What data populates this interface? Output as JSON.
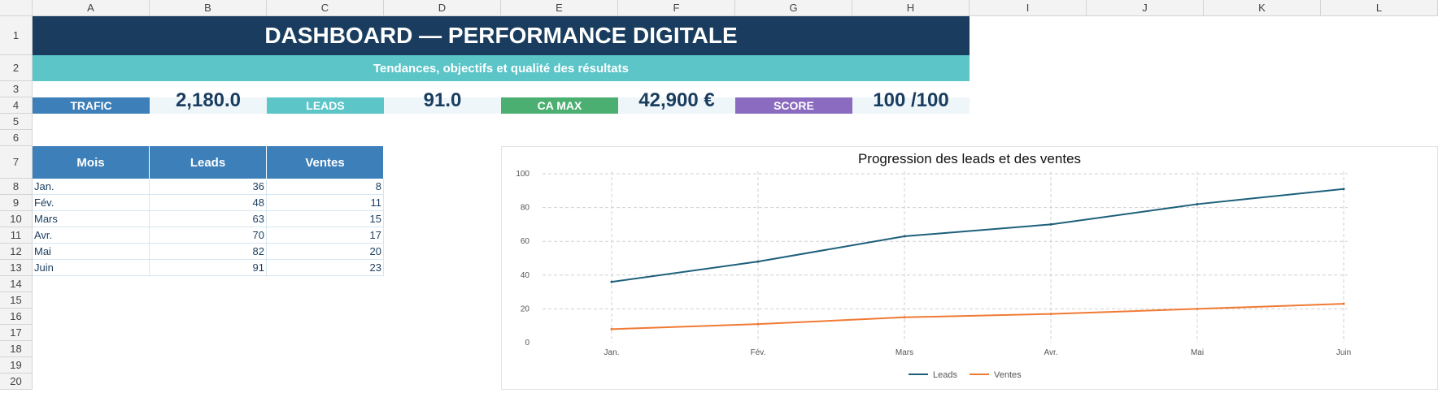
{
  "columns": [
    "A",
    "B",
    "C",
    "D",
    "E",
    "F",
    "G",
    "H",
    "I",
    "J",
    "K",
    "L"
  ],
  "rows": [
    "1",
    "2",
    "3",
    "4",
    "5",
    "6",
    "7",
    "8",
    "9",
    "10",
    "11",
    "12",
    "13",
    "14",
    "15",
    "16",
    "17",
    "18",
    "19",
    "20"
  ],
  "header": {
    "title": "DASHBOARD — PERFORMANCE DIGITALE",
    "subtitle": "Tendances, objectifs et qualité des résultats"
  },
  "kpis": [
    {
      "label": "TRAFIC",
      "value": "2,180.0",
      "color": "#3d7fb8"
    },
    {
      "label": "LEADS",
      "value": "91.0",
      "color": "#5bc5c8"
    },
    {
      "label": "CA MAX",
      "value": "42,900 €",
      "color": "#4caf72"
    },
    {
      "label": "SCORE",
      "value": "100 /100",
      "color": "#8a6bbf"
    }
  ],
  "table": {
    "headers": [
      "Mois",
      "Leads",
      "Ventes"
    ],
    "rows": [
      [
        "Jan.",
        "36",
        "8"
      ],
      [
        "Fév.",
        "48",
        "11"
      ],
      [
        "Mars",
        "63",
        "15"
      ],
      [
        "Avr.",
        "70",
        "17"
      ],
      [
        "Mai",
        "82",
        "20"
      ],
      [
        "Juin",
        "91",
        "23"
      ]
    ]
  },
  "chart_data": {
    "type": "line",
    "title": "Progression des leads et des ventes",
    "categories": [
      "Jan.",
      "Fév.",
      "Mars",
      "Avr.",
      "Mai",
      "Juin"
    ],
    "series": [
      {
        "name": "Leads",
        "values": [
          36,
          48,
          63,
          70,
          82,
          91
        ],
        "color": "#1d5f7a"
      },
      {
        "name": "Ventes",
        "values": [
          8,
          11,
          15,
          17,
          20,
          23
        ],
        "color": "#f07a34"
      }
    ],
    "ylim": [
      0,
      100
    ],
    "yticks": [
      "0",
      "20",
      "40",
      "60",
      "80",
      "100"
    ],
    "grid": true,
    "legend": "bottom"
  }
}
